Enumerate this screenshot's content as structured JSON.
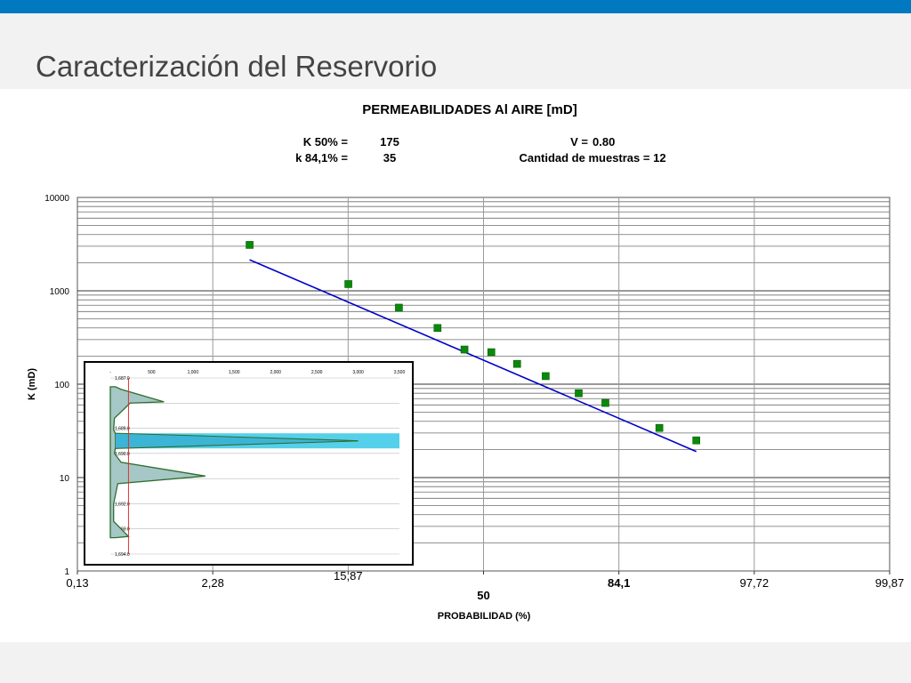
{
  "slide": {
    "title": "Caracterización del Reservorio"
  },
  "colors": {
    "top_bar": "#0079c1",
    "band": "#f2f2f2",
    "marker": "#0a8a0a",
    "trend_line": "#0000cc",
    "inset_fill_blue": "#55d0ea",
    "inset_fill_tan": "#e8c0a8"
  },
  "chart_data": {
    "type": "scatter",
    "title": "PERMEABILIDADES Al AIRE [mD]",
    "stats": {
      "k50_label": "K 50% =",
      "k50_value": "175",
      "k841_label": "k 84,1% =",
      "k841_value": "35",
      "v_label": "V =",
      "v_value": "0.80",
      "n_label": "Cantidad de muestras = 12"
    },
    "xlabel": "PROBABILIDAD (%)",
    "ylabel": "K (mD)",
    "x_scale": "normal-probability",
    "y_scale": "log",
    "ylim": [
      1,
      10000
    ],
    "x_ticks": [
      "0,13",
      "2,28",
      "15,87",
      "50",
      "84,1",
      "97,72",
      "99,87"
    ],
    "y_ticks": [
      "1",
      "10",
      "100",
      "1000",
      "10000"
    ],
    "grid": true,
    "series": [
      {
        "type": "scatter",
        "x": [
          4.2,
          15.9,
          26.6,
          36.7,
          44.4,
          52.3,
          59.8,
          67.7,
          75.9,
          81.6,
          90.3,
          94.2
        ],
        "y": [
          3100,
          1180,
          660,
          400,
          235,
          220,
          165,
          122,
          80,
          63,
          34,
          25
        ]
      },
      {
        "type": "line",
        "x": [
          4.2,
          94.2
        ],
        "y": [
          2150,
          19
        ]
      }
    ],
    "inset": {
      "type": "area",
      "x_ticks": [
        "-",
        "500",
        "1,000",
        "1,500",
        "2,000",
        "2,500",
        "3,000",
        "3,500"
      ],
      "y_ticks": [
        "1,687.0",
        "1,688.0",
        "1,689.0",
        "1,690.0",
        "1,691.0",
        "1,692.0",
        "1,693.0",
        "1,694.0"
      ],
      "xlim": [
        0,
        3500
      ],
      "ylim": [
        1687.0,
        1694.0
      ],
      "cutoff_x": 220,
      "band": [
        1689.2,
        1689.8
      ],
      "profile": [
        [
          1687.35,
          60
        ],
        [
          1687.45,
          130
        ],
        [
          1687.95,
          650
        ],
        [
          1688.0,
          240
        ],
        [
          1688.6,
          50
        ],
        [
          1689.05,
          40
        ],
        [
          1689.2,
          60
        ],
        [
          1689.5,
          3000
        ],
        [
          1689.8,
          60
        ],
        [
          1690.0,
          50
        ],
        [
          1690.35,
          130
        ],
        [
          1690.9,
          1150
        ],
        [
          1691.2,
          90
        ],
        [
          1692.0,
          40
        ],
        [
          1692.7,
          40
        ],
        [
          1693.3,
          220
        ],
        [
          1693.35,
          60
        ]
      ]
    }
  }
}
